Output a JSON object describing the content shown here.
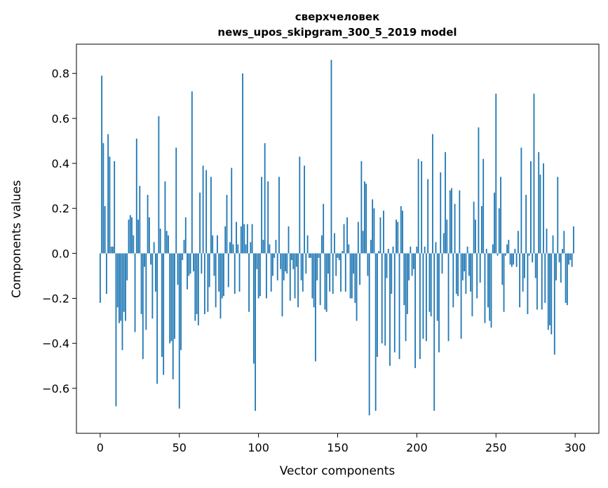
{
  "chart_data": {
    "type": "bar",
    "title": "сверхчеловек",
    "subtitle": "news_upos_skipgram_300_5_2019 model",
    "xlabel": "Vector components",
    "ylabel": "Components values",
    "xlim": [
      -15,
      315
    ],
    "ylim": [
      -0.8,
      0.93
    ],
    "xticks": [
      0,
      50,
      100,
      150,
      200,
      250,
      300
    ],
    "xtick_labels": [
      "0",
      "50",
      "100",
      "150",
      "200",
      "250",
      "300"
    ],
    "yticks": [
      -0.6,
      -0.4,
      -0.2,
      0.0,
      0.2,
      0.4,
      0.6,
      0.8
    ],
    "ytick_labels": [
      "−0.6",
      "−0.4",
      "−0.2",
      "0.0",
      "0.2",
      "0.4",
      "0.6",
      "0.8"
    ],
    "grid": false,
    "bar_color": "#1f77b4",
    "x_start": 0,
    "values": [
      -0.22,
      0.79,
      0.49,
      0.21,
      -0.18,
      0.53,
      0.43,
      0.03,
      0.03,
      0.41,
      -0.68,
      -0.24,
      -0.31,
      -0.3,
      -0.43,
      -0.26,
      -0.3,
      -0.12,
      0.15,
      0.17,
      0.16,
      0.08,
      -0.35,
      0.51,
      0.15,
      0.3,
      -0.27,
      -0.47,
      -0.06,
      -0.34,
      0.26,
      0.16,
      -0.05,
      -0.29,
      0.05,
      -0.17,
      -0.58,
      0.61,
      0.11,
      -0.46,
      -0.54,
      0.32,
      0.1,
      0.08,
      -0.4,
      -0.39,
      -0.56,
      -0.38,
      0.47,
      -0.14,
      -0.69,
      -0.43,
      -0.03,
      0.06,
      0.16,
      -0.16,
      -0.1,
      -0.09,
      0.72,
      -0.08,
      -0.3,
      -0.27,
      -0.32,
      0.27,
      -0.09,
      0.39,
      -0.27,
      0.37,
      -0.26,
      -0.15,
      0.34,
      0.08,
      -0.1,
      -0.24,
      0.08,
      -0.17,
      -0.29,
      -0.2,
      -0.19,
      0.12,
      0.26,
      -0.15,
      0.05,
      0.38,
      0.04,
      -0.18,
      0.14,
      0.04,
      -0.17,
      0.12,
      0.8,
      0.13,
      0.04,
      0.13,
      -0.26,
      0.05,
      0.13,
      -0.49,
      -0.7,
      -0.07,
      -0.2,
      -0.19,
      0.34,
      0.06,
      0.49,
      -0.2,
      0.32,
      0.04,
      -0.17,
      -0.1,
      -0.02,
      0.06,
      -0.12,
      0.34,
      -0.07,
      -0.28,
      -0.12,
      -0.08,
      -0.09,
      0.12,
      -0.21,
      -0.03,
      -0.07,
      -0.2,
      -0.06,
      -0.24,
      0.43,
      -0.12,
      -0.17,
      0.39,
      -0.09,
      0.08,
      -0.02,
      -0.02,
      -0.2,
      -0.24,
      -0.48,
      -0.12,
      -0.02,
      -0.23,
      0.08,
      0.22,
      -0.25,
      -0.26,
      -0.09,
      -0.17,
      0.86,
      -0.18,
      0.09,
      -0.1,
      -0.02,
      -0.03,
      -0.17,
      0.01,
      0.13,
      -0.17,
      0.16,
      0.04,
      -0.2,
      -0.2,
      -0.09,
      -0.22,
      -0.3,
      0.14,
      -0.14,
      0.41,
      0.1,
      0.32,
      0.31,
      -0.1,
      -0.72,
      0.06,
      0.24,
      0.2,
      -0.7,
      -0.46,
      0.01,
      0.16,
      -0.4,
      0.19,
      -0.41,
      -0.11,
      0.02,
      -0.5,
      -0.18,
      0.03,
      -0.44,
      0.15,
      0.14,
      -0.47,
      0.21,
      0.19,
      -0.23,
      -0.39,
      -0.27,
      -0.12,
      0.03,
      -0.1,
      -0.07,
      -0.51,
      0.03,
      0.42,
      -0.47,
      0.41,
      -0.38,
      0.03,
      -0.39,
      0.33,
      -0.26,
      -0.28,
      0.53,
      -0.7,
      0.05,
      -0.3,
      -0.44,
      0.36,
      -0.09,
      0.09,
      0.45,
      0.15,
      -0.39,
      0.28,
      0.29,
      -0.24,
      0.22,
      -0.18,
      -0.19,
      0.28,
      -0.38,
      -0.12,
      -0.08,
      -0.18,
      0.03,
      -0.1,
      -0.17,
      -0.28,
      0.23,
      0.15,
      -0.2,
      0.56,
      -0.13,
      0.21,
      0.42,
      -0.31,
      0.02,
      -0.24,
      -0.3,
      -0.33,
      0.04,
      0.27,
      0.71,
      -0.01,
      0.2,
      0.34,
      -0.14,
      -0.26,
      -0.01,
      0.04,
      0.06,
      -0.05,
      -0.06,
      -0.05,
      0.02,
      -0.06,
      0.1,
      -0.24,
      0.47,
      -0.17,
      -0.11,
      0.26,
      -0.27,
      -0.01,
      0.41,
      -0.04,
      0.71,
      -0.11,
      -0.25,
      0.45,
      0.35,
      -0.25,
      0.4,
      -0.22,
      0.11,
      -0.34,
      -0.32,
      -0.36,
      0.08,
      -0.45,
      -0.12,
      0.34,
      -0.04,
      -0.13,
      0.02,
      0.1,
      -0.22,
      -0.23,
      -0.05,
      -0.03,
      -0.06,
      0.12
    ]
  }
}
